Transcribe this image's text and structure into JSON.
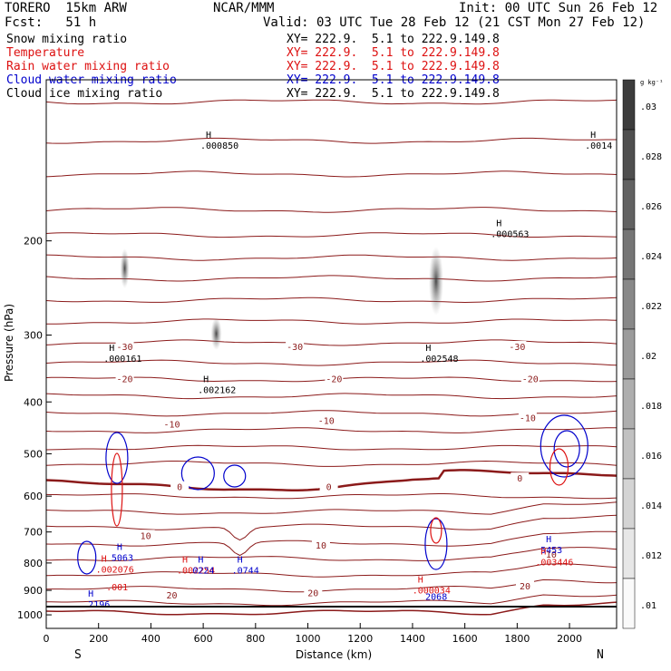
{
  "header": {
    "model": "TORERO  15km ARW",
    "org": "NCAR/MMM",
    "init": "Init: 00 UTC Sun 26 Feb 12",
    "fcst": "Fcst:   51 h",
    "valid": "Valid: 03 UTC Tue 28 Feb 12 (21 CST Mon 27 Feb 12)",
    "fields": [
      {
        "name": "Snow mixing ratio",
        "xy": "XY= 222.9.  5.1 to 222.9.149.8",
        "color": "#000000"
      },
      {
        "name": "Temperature",
        "xy": "XY= 222.9.  5.1 to 222.9.149.8",
        "color": "#dd1111"
      },
      {
        "name": "Rain water mixing ratio",
        "xy": "XY= 222.9.  5.1 to 222.9.149.8",
        "color": "#dd1111"
      },
      {
        "name": "Cloud water mixing ratio",
        "xy": "XY= 222.9.  5.1 to 222.9.149.8",
        "color": "#0000cc"
      },
      {
        "name": "Cloud ice mixing ratio",
        "xy": "XY= 222.9.  5.1 to 222.9.149.8",
        "color": "#000000"
      }
    ]
  },
  "chart_data": {
    "type": "contour",
    "xlabel": "Distance (km)",
    "ylabel": "Pressure (hPa)",
    "xlim": [
      0,
      2180
    ],
    "ylim": [
      1000,
      100
    ],
    "y_scale": "log",
    "xticks": [
      0,
      200,
      400,
      600,
      800,
      1000,
      1200,
      1400,
      1600,
      1800,
      2000
    ],
    "yticks": [
      200,
      300,
      400,
      500,
      600,
      700,
      800,
      900,
      1000
    ],
    "end_labels": {
      "left": "S",
      "right": "N"
    },
    "temperature_contours": {
      "color": "#8b1a1a",
      "levels_hPa_at_left": [
        110,
        130,
        150,
        175,
        195,
        215,
        235,
        258,
        283,
        310,
        338,
        363,
        390,
        420,
        452,
        487,
        522,
        560,
        600,
        642,
        685,
        735,
        785,
        840,
        895,
        950,
        990
      ],
      "labels": [
        {
          "text": "-30",
          "x": 300,
          "p": 315
        },
        {
          "text": "-30",
          "x": 950,
          "p": 315
        },
        {
          "text": "-30",
          "x": 1800,
          "p": 315
        },
        {
          "text": "-20",
          "x": 300,
          "p": 362
        },
        {
          "text": "-20",
          "x": 1100,
          "p": 362
        },
        {
          "text": "-20",
          "x": 1850,
          "p": 362
        },
        {
          "text": "-10",
          "x": 480,
          "p": 440
        },
        {
          "text": "-10",
          "x": 1070,
          "p": 433
        },
        {
          "text": "-10",
          "x": 1840,
          "p": 428
        },
        {
          "text": "0",
          "x": 510,
          "p": 576
        },
        {
          "text": "0",
          "x": 1080,
          "p": 576
        },
        {
          "text": "0",
          "x": 1810,
          "p": 555
        },
        {
          "text": "10",
          "x": 380,
          "p": 710
        },
        {
          "text": "10",
          "x": 1050,
          "p": 740
        },
        {
          "text": "10",
          "x": 1930,
          "p": 770
        },
        {
          "text": "20",
          "x": 480,
          "p": 918
        },
        {
          "text": "20",
          "x": 1020,
          "p": 908
        },
        {
          "text": "20",
          "x": 1830,
          "p": 882
        }
      ]
    },
    "max_labels": [
      {
        "h": "H",
        "val": ".000161",
        "x": 240,
        "p": 325,
        "color": "#000000"
      },
      {
        "h": "H",
        "val": ".002162",
        "x": 600,
        "p": 372,
        "color": "#000000"
      },
      {
        "h": "H",
        "val": ".002548",
        "x": 1450,
        "p": 325,
        "color": "#000000"
      },
      {
        "h": "H",
        "val": ".000563",
        "x": 1720,
        "p": 190,
        "color": "#000000"
      },
      {
        "h": "H",
        "val": ".000850",
        "x": 610,
        "p": 130,
        "color": "#000000"
      },
      {
        "h": "H",
        "val": ".0014",
        "x": 2080,
        "p": 130,
        "color": "#000000"
      },
      {
        "h": "H",
        "val": "5063",
        "x": 270,
        "p": 765,
        "color": "#0000cc"
      },
      {
        "h": "H",
        "val": ".002076",
        "x": 210,
        "p": 805,
        "color": "#dd1111"
      },
      {
        "h": "",
        "val": ".001",
        "x": 250,
        "p": 868,
        "color": "#dd1111"
      },
      {
        "h": "H",
        "val": ".002254",
        "x": 520,
        "p": 808,
        "color": "#dd1111"
      },
      {
        "h": "H",
        "val": "0224",
        "x": 580,
        "p": 808,
        "color": "#0000cc"
      },
      {
        "h": "H",
        "val": ".0744",
        "x": 730,
        "p": 808,
        "color": "#0000cc"
      },
      {
        "h": "H",
        "val": ".2196",
        "x": 160,
        "p": 935,
        "color": "#0000cc"
      },
      {
        "h": "H",
        "val": ".000034",
        "x": 1420,
        "p": 880,
        "color": "#dd1111"
      },
      {
        "h": "",
        "val": "2068",
        "x": 1470,
        "p": 905,
        "color": "#0000cc"
      },
      {
        "h": "H",
        "val": "5453",
        "x": 1910,
        "p": 740,
        "color": "#0000cc"
      },
      {
        "h": "H",
        "val": ".003446",
        "x": 1890,
        "p": 780,
        "color": "#dd1111"
      }
    ]
  },
  "colorbar": {
    "units": "g kg⁻¹",
    "ticks": [
      ".03",
      ".028",
      ".026",
      ".024",
      ".022",
      ".02",
      ".018",
      ".016",
      ".014",
      ".012",
      ".01"
    ]
  }
}
